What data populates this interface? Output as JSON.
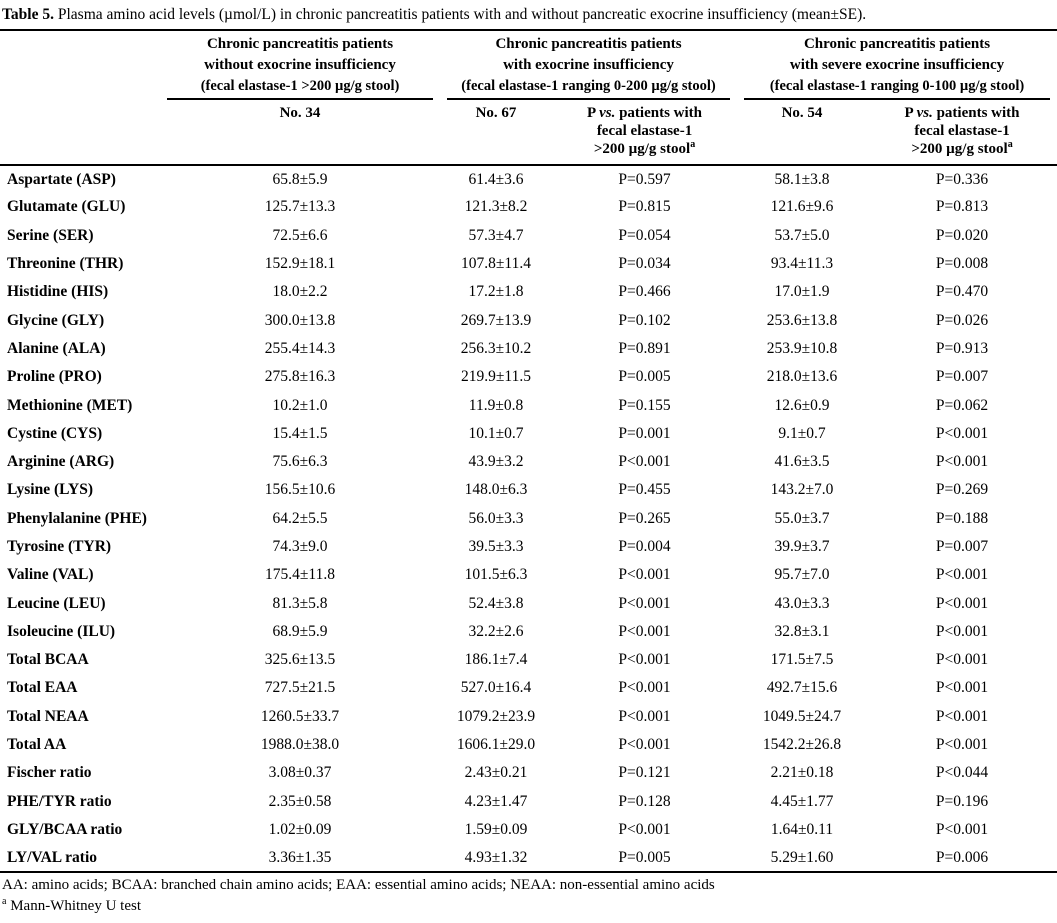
{
  "title": {
    "label": "Table 5.",
    "text": " Plasma amino acid levels (µmol/L) in chronic pancreatitis patients with and without pancreatic exocrine insufficiency (mean±SE)."
  },
  "groups": [
    {
      "line1": "Chronic pancreatitis patients",
      "line2": "without exocrine insufficiency",
      "line3": "(fecal elastase-1 >200 µg/g stool)"
    },
    {
      "line1": "Chronic pancreatitis patients",
      "line2": "with exocrine insufficiency",
      "line3": "(fecal elastase-1 ranging 0-200 µg/g stool)"
    },
    {
      "line1": "Chronic pancreatitis patients",
      "line2": "with severe exocrine insufficiency",
      "line3": "(fecal elastase-1 ranging 0-100 µg/g stool)"
    }
  ],
  "subheader": {
    "n1": "No. 34",
    "n2": "No. 67",
    "n3": "No. 54",
    "p_line1_pre": "P ",
    "p_line1_vs": "vs.",
    "p_line1_post": " patients with",
    "p_line2": "fecal elastase-1",
    "p_line3": ">200 µg/g stool",
    "p_sup": "a"
  },
  "table": {
    "rows": [
      [
        "Aspartate (ASP)",
        "65.8±5.9",
        "61.4±3.6",
        "P=0.597",
        "58.1±3.8",
        "P=0.336"
      ],
      [
        "Glutamate (GLU)",
        "125.7±13.3",
        "121.3±8.2",
        "P=0.815",
        "121.6±9.6",
        "P=0.813"
      ],
      [
        "Serine (SER)",
        "72.5±6.6",
        "57.3±4.7",
        "P=0.054",
        "53.7±5.0",
        "P=0.020"
      ],
      [
        "Threonine (THR)",
        "152.9±18.1",
        "107.8±11.4",
        "P=0.034",
        "93.4±11.3",
        "P=0.008"
      ],
      [
        "Histidine (HIS)",
        "18.0±2.2",
        "17.2±1.8",
        "P=0.466",
        "17.0±1.9",
        "P=0.470"
      ],
      [
        "Glycine (GLY)",
        "300.0±13.8",
        "269.7±13.9",
        "P=0.102",
        "253.6±13.8",
        "P=0.026"
      ],
      [
        "Alanine (ALA)",
        "255.4±14.3",
        "256.3±10.2",
        "P=0.891",
        "253.9±10.8",
        "P=0.913"
      ],
      [
        "Proline (PRO)",
        "275.8±16.3",
        "219.9±11.5",
        "P=0.005",
        "218.0±13.6",
        "P=0.007"
      ],
      [
        "Methionine (MET)",
        "10.2±1.0",
        "11.9±0.8",
        "P=0.155",
        "12.6±0.9",
        "P=0.062"
      ],
      [
        "Cystine (CYS)",
        "15.4±1.5",
        "10.1±0.7",
        "P=0.001",
        "9.1±0.7",
        "P<0.001"
      ],
      [
        "Arginine (ARG)",
        "75.6±6.3",
        "43.9±3.2",
        "P<0.001",
        "41.6±3.5",
        "P<0.001"
      ],
      [
        "Lysine (LYS)",
        "156.5±10.6",
        "148.0±6.3",
        "P=0.455",
        "143.2±7.0",
        "P=0.269"
      ],
      [
        "Phenylalanine (PHE)",
        "64.2±5.5",
        "56.0±3.3",
        "P=0.265",
        "55.0±3.7",
        "P=0.188"
      ],
      [
        "Tyrosine (TYR)",
        "74.3±9.0",
        "39.5±3.3",
        "P=0.004",
        "39.9±3.7",
        "P=0.007"
      ],
      [
        "Valine (VAL)",
        "175.4±11.8",
        "101.5±6.3",
        "P<0.001",
        "95.7±7.0",
        "P<0.001"
      ],
      [
        "Leucine (LEU)",
        "81.3±5.8",
        "52.4±3.8",
        "P<0.001",
        "43.0±3.3",
        "P<0.001"
      ],
      [
        "Isoleucine (ILU)",
        "68.9±5.9",
        "32.2±2.6",
        "P<0.001",
        "32.8±3.1",
        "P<0.001"
      ],
      [
        "Total BCAA",
        "325.6±13.5",
        "186.1±7.4",
        "P<0.001",
        "171.5±7.5",
        "P<0.001"
      ],
      [
        "Total EAA",
        "727.5±21.5",
        "527.0±16.4",
        "P<0.001",
        "492.7±15.6",
        "P<0.001"
      ],
      [
        "Total NEAA",
        "1260.5±33.7",
        "1079.2±23.9",
        "P<0.001",
        "1049.5±24.7",
        "P<0.001"
      ],
      [
        "Total AA",
        "1988.0±38.0",
        "1606.1±29.0",
        "P<0.001",
        "1542.2±26.8",
        "P<0.001"
      ],
      [
        "Fischer ratio",
        "3.08±0.37",
        "2.43±0.21",
        "P=0.121",
        "2.21±0.18",
        "P<0.044"
      ],
      [
        "PHE/TYR ratio",
        "2.35±0.58",
        "4.23±1.47",
        "P=0.128",
        "4.45±1.77",
        "P=0.196"
      ],
      [
        "GLY/BCAA ratio",
        "1.02±0.09",
        "1.59±0.09",
        "P<0.001",
        "1.64±0.11",
        "P<0.001"
      ],
      [
        "LY/VAL ratio",
        "3.36±1.35",
        "4.93±1.32",
        "P=0.005",
        "5.29±1.60",
        "P=0.006"
      ]
    ]
  },
  "footnotes": {
    "abbrev": "AA: amino acids; BCAA: branched chain amino acids; EAA: essential amino acids; NEAA: non-essential amino acids",
    "sup": "a",
    "test": " Mann-Whitney U test"
  }
}
